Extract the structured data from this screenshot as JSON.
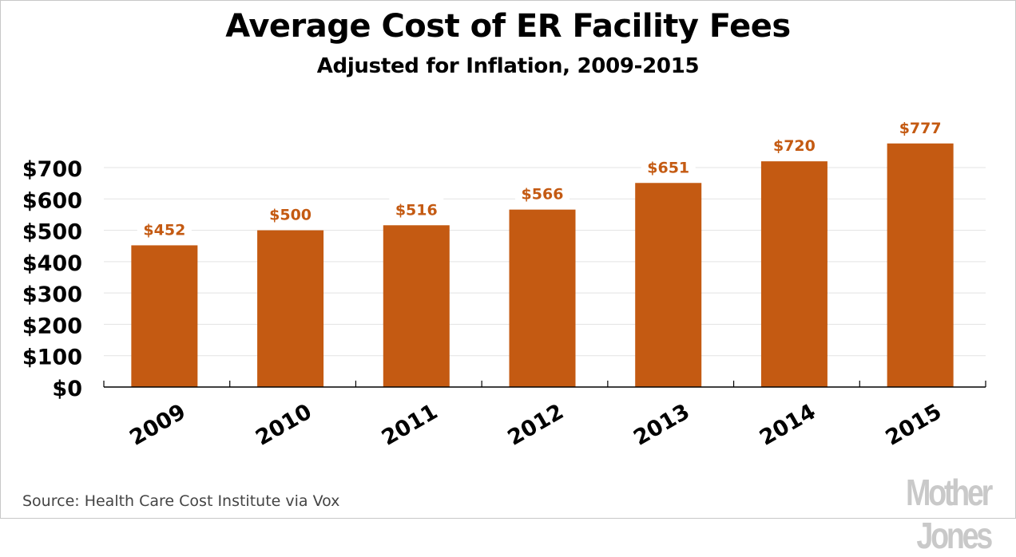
{
  "chart_data": {
    "type": "bar",
    "title": "Average Cost of ER Facility Fees",
    "subtitle": "Adjusted for Inflation, 2009-2015",
    "categories": [
      "2009",
      "2010",
      "2011",
      "2012",
      "2013",
      "2014",
      "2015"
    ],
    "values": [
      452,
      500,
      516,
      566,
      651,
      720,
      777
    ],
    "data_labels": [
      "$452",
      "$500",
      "$516",
      "$566",
      "$651",
      "$720",
      "$777"
    ],
    "xlabel": "",
    "ylabel": "",
    "ylim": [
      0,
      800
    ],
    "yticks": [
      0,
      100,
      200,
      300,
      400,
      500,
      600,
      700
    ],
    "ytick_labels": [
      "$0",
      "$100",
      "$200",
      "$300",
      "$400",
      "$500",
      "$600",
      "$700"
    ],
    "grid": true,
    "legend": "none",
    "bar_color": "#c45a12",
    "label_color": "#c45a12",
    "grid_color": "#e3e3e3"
  },
  "footer": {
    "source": "Source: Health Care Cost Institute via Vox",
    "logo": "Mother Jones"
  }
}
